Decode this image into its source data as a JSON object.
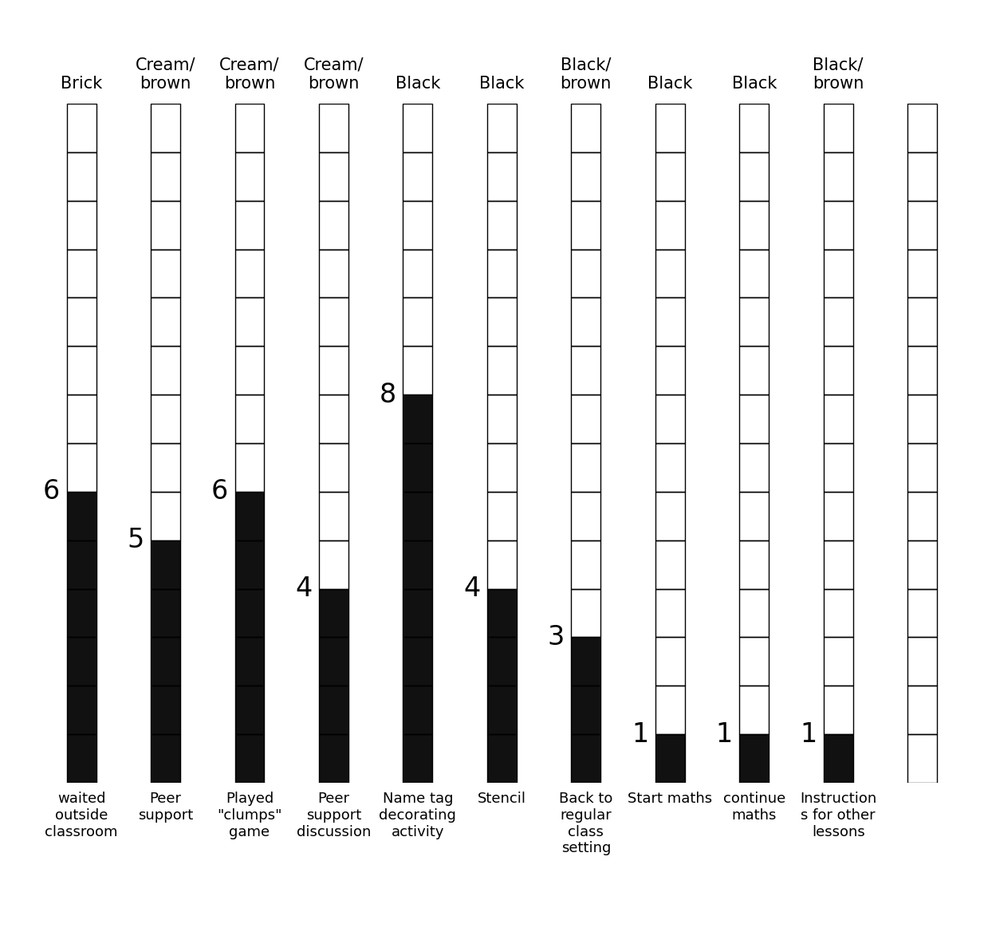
{
  "chart_data": {
    "type": "bar",
    "categories": [
      "waited outside classroom",
      "Peer support",
      "Played \"clumps\" game",
      "Peer support discussion",
      "Name tag decorating activity",
      "Stencil",
      "Back to regular class setting",
      "Start maths",
      "continue maths",
      "Instructions for other lessons",
      null
    ],
    "top_labels": [
      "Brick",
      "Cream/ brown",
      "Cream/ brown",
      "Cream/ brown",
      "Black",
      "Black",
      "Black/ brown",
      "Black",
      "Black",
      "Black/ brown",
      null
    ],
    "values": [
      6,
      5,
      6,
      4,
      8,
      4,
      3,
      1,
      1,
      1,
      null
    ],
    "color": "#111111",
    "ylim": [
      0,
      14
    ],
    "yticks": [
      0,
      1,
      2,
      3,
      4,
      5,
      6,
      7,
      8,
      9,
      10,
      11,
      12,
      13,
      14
    ],
    "grid": true,
    "data_labels": true,
    "tick_labels": "x"
  }
}
